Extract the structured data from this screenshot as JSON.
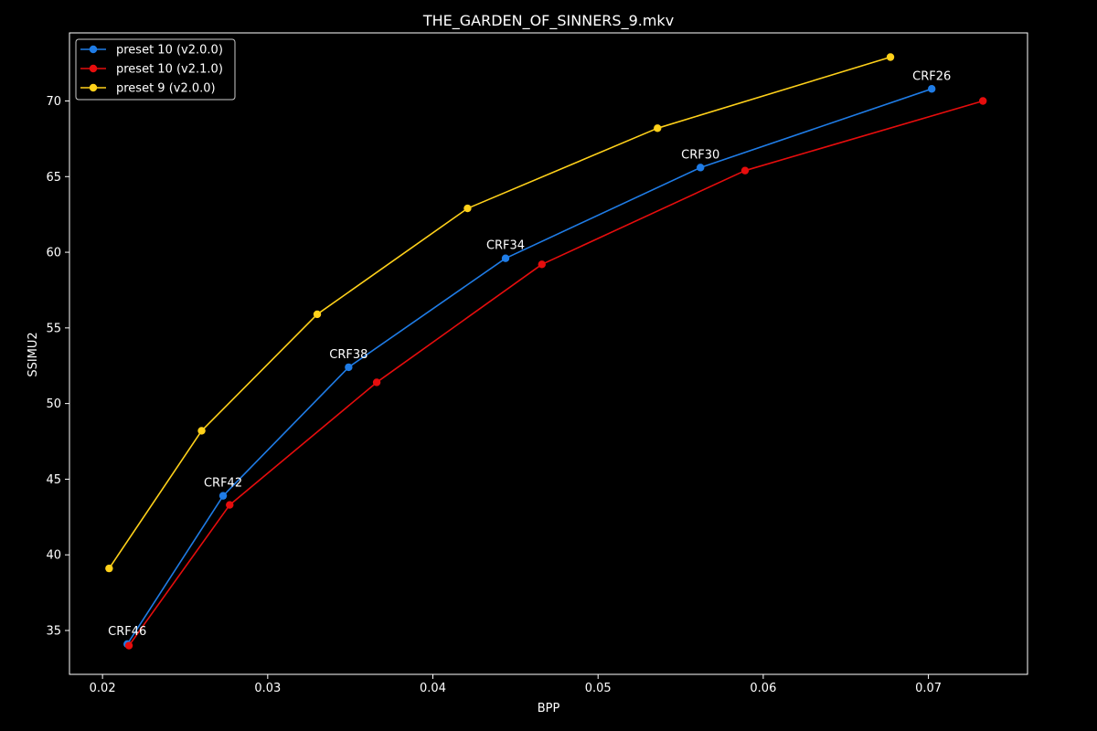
{
  "chart_data": {
    "type": "line",
    "title": "THE_GARDEN_OF_SINNERS_9.mkv",
    "xlabel": "BPP",
    "ylabel": "SSIMU2",
    "xlim": [
      0.018,
      0.076
    ],
    "ylim": [
      32.1,
      74.5
    ],
    "xticks": [
      0.02,
      0.03,
      0.04,
      0.05,
      0.06,
      0.07
    ],
    "xtick_labels": [
      "0.02",
      "0.03",
      "0.04",
      "0.05",
      "0.06",
      "0.07"
    ],
    "yticks": [
      35,
      40,
      45,
      50,
      55,
      60,
      65,
      70
    ],
    "ytick_labels": [
      "35",
      "40",
      "45",
      "50",
      "55",
      "60",
      "65",
      "70"
    ],
    "grid": false,
    "legend_position": "top-left",
    "series": [
      {
        "name": "preset 10 (v2.0.0)",
        "color": "#1f7ce6",
        "x": [
          0.0215,
          0.0273,
          0.0349,
          0.0444,
          0.0562,
          0.0702
        ],
        "y": [
          34.1,
          43.9,
          52.4,
          59.6,
          65.6,
          70.8
        ]
      },
      {
        "name": "preset 10 (v2.1.0)",
        "color": "#e60d0d",
        "x": [
          0.0216,
          0.0277,
          0.0366,
          0.0466,
          0.0589,
          0.0733
        ],
        "y": [
          34.0,
          43.3,
          51.4,
          59.2,
          65.4,
          70.0
        ]
      },
      {
        "name": "preset 9 (v2.0.0)",
        "color": "#ffd11a",
        "x": [
          0.0204,
          0.026,
          0.033,
          0.0421,
          0.0536,
          0.0677
        ],
        "y": [
          39.1,
          48.2,
          55.9,
          62.9,
          68.2,
          72.9
        ]
      }
    ],
    "annotations": [
      {
        "text": "CRF46",
        "x": 0.0215,
        "y": 34.1
      },
      {
        "text": "CRF42",
        "x": 0.0273,
        "y": 43.9
      },
      {
        "text": "CRF38",
        "x": 0.0349,
        "y": 52.4
      },
      {
        "text": "CRF34",
        "x": 0.0444,
        "y": 59.6
      },
      {
        "text": "CRF30",
        "x": 0.0562,
        "y": 65.6
      },
      {
        "text": "CRF26",
        "x": 0.0702,
        "y": 70.8
      }
    ]
  }
}
